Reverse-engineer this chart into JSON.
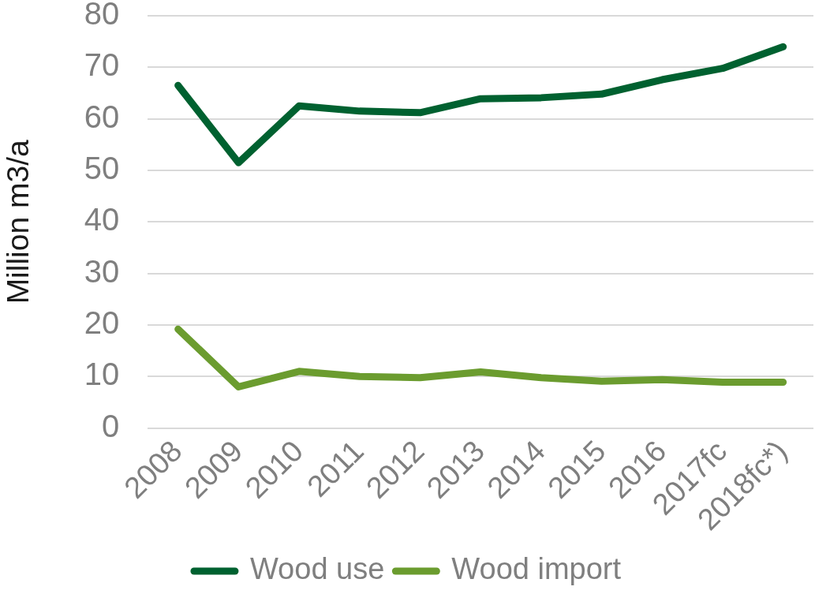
{
  "chart_data": {
    "type": "line",
    "categories": [
      "2008",
      "2009",
      "2010",
      "2011",
      "2012",
      "2013",
      "2014",
      "2015",
      "2016",
      "2017fc",
      "2018fc*)"
    ],
    "series": [
      {
        "name": "Wood use",
        "color": "#006130",
        "values": [
          66.5,
          51.5,
          62.5,
          61.5,
          61.2,
          63.9,
          64.1,
          64.8,
          67.6,
          69.8,
          74
        ]
      },
      {
        "name": "Wood import",
        "color": "#6b9c2f",
        "values": [
          19.2,
          8.0,
          11.0,
          10.0,
          9.8,
          10.9,
          9.8,
          9.1,
          9.4,
          8.9,
          8.9
        ]
      }
    ],
    "ylabel": "Million m3/a",
    "ylim": [
      0,
      80
    ],
    "yticks": [
      0,
      10,
      20,
      30,
      40,
      50,
      60,
      70,
      80
    ],
    "grid": "y",
    "legend": "bottom",
    "marker": "none",
    "line_style": "solid"
  }
}
